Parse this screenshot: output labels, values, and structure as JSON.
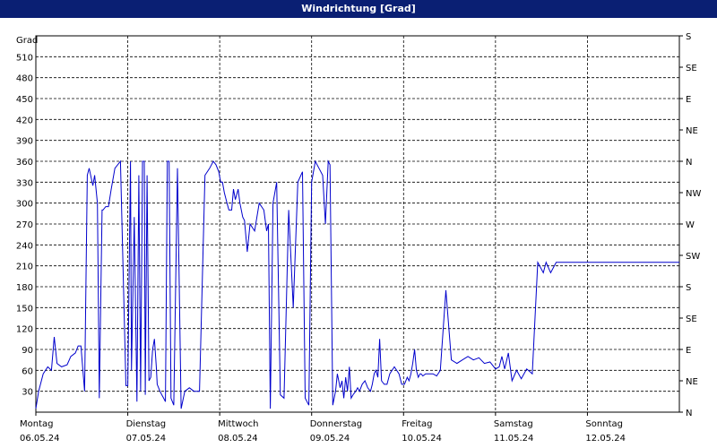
{
  "window": {
    "title": "Windrichtung [Grad]"
  },
  "chart_data": {
    "type": "line",
    "title": "Windrichtung [Grad]",
    "ylabel": "Grad",
    "ylim": [
      0,
      540
    ],
    "yticks": [
      30,
      60,
      90,
      120,
      150,
      180,
      210,
      240,
      270,
      300,
      330,
      360,
      390,
      420,
      450,
      480,
      510
    ],
    "xlim": [
      0,
      7
    ],
    "day_labels": [
      {
        "day": "Montag",
        "date": "06.05.24",
        "x": 0
      },
      {
        "day": "Dienstag",
        "date": "07.05.24",
        "x": 1
      },
      {
        "day": "Mittwoch",
        "date": "08.05.24",
        "x": 2
      },
      {
        "day": "Donnerstag",
        "date": "09.05.24",
        "x": 3
      },
      {
        "day": "Freitag",
        "date": "10.05.24",
        "x": 4
      },
      {
        "day": "Samstag",
        "date": "11.05.24",
        "x": 5
      },
      {
        "day": "Sonntag",
        "date": "12.05.24",
        "x": 6
      }
    ],
    "right_axis_labels": [
      {
        "value": 0,
        "label": "N"
      },
      {
        "value": 45,
        "label": "NE"
      },
      {
        "value": 90,
        "label": "E"
      },
      {
        "value": 135,
        "label": "SE"
      },
      {
        "value": 180,
        "label": "S"
      },
      {
        "value": 225,
        "label": "SW"
      },
      {
        "value": 270,
        "label": "W"
      },
      {
        "value": 315,
        "label": "NW"
      },
      {
        "value": 360,
        "label": "N"
      },
      {
        "value": 405,
        "label": "NE"
      },
      {
        "value": 450,
        "label": "E"
      },
      {
        "value": 495,
        "label": "SE"
      },
      {
        "value": 540,
        "label": "S"
      }
    ],
    "grid": true,
    "line_color": "#0000cc",
    "series": [
      {
        "x": [
          0.0,
          0.03,
          0.08,
          0.13,
          0.17,
          0.2,
          0.23,
          0.28,
          0.34,
          0.38,
          0.43,
          0.46,
          0.49,
          0.53,
          0.56,
          0.58,
          0.62,
          0.64,
          0.67,
          0.69,
          0.72,
          0.73,
          0.76,
          0.79,
          0.82,
          0.86,
          0.92,
          0.98,
          1.0,
          1.03,
          1.04,
          1.07,
          1.1,
          1.12,
          1.14,
          1.16,
          1.18,
          1.19,
          1.21,
          1.23,
          1.25,
          1.27,
          1.29,
          1.31,
          1.32,
          1.35,
          1.37,
          1.39,
          1.41,
          1.43,
          1.45,
          1.47,
          1.5,
          1.54,
          1.58,
          1.62,
          1.67,
          1.72,
          1.78,
          1.84,
          1.89,
          1.93,
          1.96,
          1.99,
          2.01,
          2.03,
          2.05,
          2.08,
          2.1,
          2.13,
          2.15,
          2.17,
          2.2,
          2.22,
          2.25,
          2.27,
          2.3,
          2.33,
          2.38,
          2.43,
          2.48,
          2.51,
          2.53,
          2.55,
          2.58,
          2.62,
          2.66,
          2.7,
          2.75,
          2.8,
          2.85,
          2.9,
          2.93,
          2.97,
          3.0,
          3.04,
          3.08,
          3.12,
          3.15,
          3.18,
          3.2,
          3.23,
          3.26,
          3.28,
          3.31,
          3.33,
          3.35,
          3.37,
          3.39,
          3.41,
          3.43,
          3.45,
          3.48,
          3.5,
          3.52,
          3.55,
          3.58,
          3.61,
          3.64,
          3.66,
          3.68,
          3.7,
          3.72,
          3.74,
          3.76,
          3.79,
          3.82,
          3.85,
          3.9,
          3.95,
          3.98,
          4.01,
          4.04,
          4.06,
          4.08,
          4.1,
          4.12,
          4.14,
          4.16,
          4.18,
          4.19,
          4.21,
          4.24,
          4.28,
          4.32,
          4.36,
          4.4,
          4.46,
          4.52,
          4.58,
          4.64,
          4.7,
          4.76,
          4.82,
          4.88,
          4.94,
          5.0,
          5.04,
          5.07,
          5.1,
          5.14,
          5.18,
          5.23,
          5.28,
          5.34,
          5.4,
          5.46,
          5.52,
          5.55,
          5.6,
          5.66,
          5.72,
          5.78,
          5.84,
          5.9,
          5.95,
          6.0,
          6.04,
          6.06,
          6.08,
          6.12,
          6.17,
          6.22,
          6.27,
          6.32,
          6.38,
          6.44,
          6.5,
          6.56,
          6.6,
          6.64,
          6.68,
          6.72,
          6.76,
          6.8,
          6.84,
          6.88,
          6.92,
          6.95,
          6.98,
          7.0
        ],
        "y": [
          5,
          30,
          55,
          65,
          60,
          108,
          70,
          65,
          68,
          80,
          85,
          95,
          95,
          30,
          340,
          350,
          325,
          340,
          300,
          20,
          290,
          290,
          295,
          295,
          320,
          350,
          360,
          38,
          38,
          360,
          60,
          280,
          15,
          340,
          30,
          360,
          360,
          25,
          340,
          45,
          50,
          90,
          105,
          65,
          40,
          30,
          25,
          20,
          15,
          360,
          360,
          20,
          10,
          350,
          5,
          30,
          35,
          30,
          30,
          340,
          350,
          360,
          355,
          345,
          330,
          330,
          315,
          300,
          290,
          290,
          320,
          305,
          320,
          300,
          280,
          275,
          230,
          270,
          260,
          300,
          290,
          260,
          270,
          5,
          300,
          330,
          25,
          20,
          290,
          150,
          330,
          345,
          20,
          10,
          330,
          360,
          350,
          340,
          270,
          360,
          355,
          10,
          30,
          55,
          35,
          45,
          20,
          50,
          30,
          65,
          20,
          25,
          30,
          35,
          30,
          40,
          45,
          35,
          30,
          40,
          55,
          60,
          50,
          105,
          45,
          40,
          40,
          55,
          65,
          55,
          40,
          40,
          50,
          45,
          55,
          70,
          90,
          60,
          50,
          55,
          55,
          52,
          55,
          55,
          55,
          52,
          60,
          175,
          75,
          70,
          75,
          80,
          75,
          78,
          70,
          72,
          62,
          65,
          80,
          62,
          85,
          45,
          60,
          48,
          62,
          55,
          215,
          200,
          215,
          200,
          215,
          215,
          215,
          215,
          215,
          215,
          215,
          215,
          215,
          215,
          215,
          215,
          215,
          215,
          215,
          215,
          215,
          215,
          215,
          215,
          215,
          215,
          215,
          215,
          215,
          215,
          215,
          215,
          215,
          215,
          215
        ]
      }
    ]
  }
}
